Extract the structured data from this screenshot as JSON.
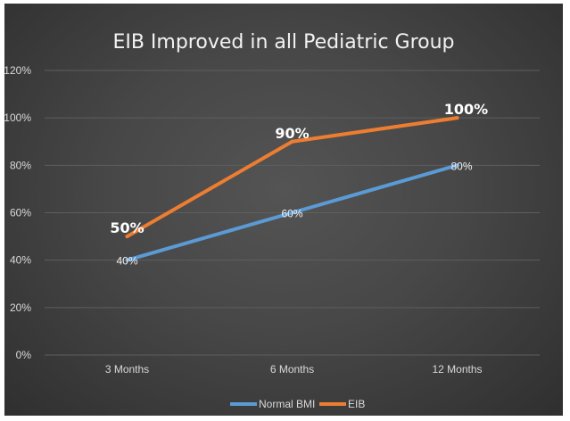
{
  "chart_data": {
    "type": "line",
    "title": "EIB Improved in all Pediatric Group",
    "categories": [
      "3 Months",
      "6 Months",
      "12 Months"
    ],
    "ylim": [
      0,
      120
    ],
    "yticks": [
      "0%",
      "20%",
      "40%",
      "60%",
      "80%",
      "100%",
      "120%"
    ],
    "grid": true,
    "legend_position": "bottom",
    "series": [
      {
        "name": "Normal BMI",
        "color": "#5b9bd5",
        "values": [
          40,
          60,
          80
        ],
        "labels": [
          "40%",
          "60%",
          "80%"
        ]
      },
      {
        "name": "EIB",
        "color": "#ed7d31",
        "values": [
          50,
          90,
          100
        ],
        "labels": [
          "50%",
          "90%",
          "100%"
        ]
      }
    ]
  }
}
